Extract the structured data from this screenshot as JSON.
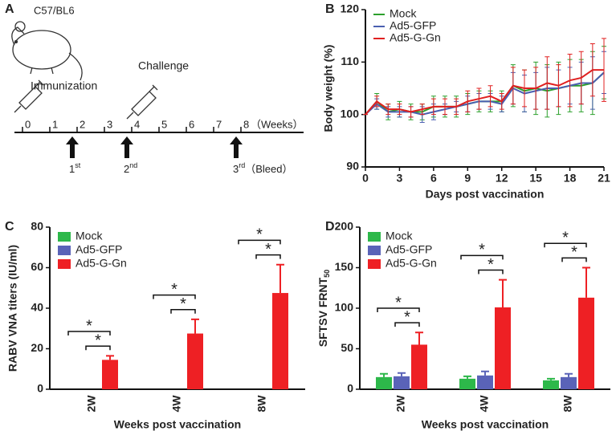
{
  "diagram": {
    "label": "A",
    "strain": "C57/BL6",
    "events": [
      "Immunization",
      "Challenge"
    ],
    "weeks": [
      "0",
      "1",
      "2",
      "3",
      "4",
      "5",
      "6",
      "7",
      "8"
    ],
    "unit": "（Weeks）",
    "doses": [
      {
        "text": "1",
        "sup": "st"
      },
      {
        "text": "2",
        "sup": "nd"
      },
      {
        "text": "3",
        "sup": "rd",
        "note": "（Bleed）"
      }
    ]
  },
  "chart_data": [
    {
      "label": "B",
      "type": "line",
      "xlabel": "Days post vaccination",
      "ylabel": "Body weight (%)",
      "x": [
        0,
        1,
        2,
        3,
        4,
        5,
        6,
        7,
        8,
        9,
        10,
        11,
        12,
        13,
        14,
        15,
        16,
        17,
        18,
        19,
        20,
        21
      ],
      "xlim": [
        0,
        21
      ],
      "xticks": [
        0,
        3,
        6,
        9,
        12,
        15,
        18,
        21
      ],
      "ylim": [
        90,
        120
      ],
      "yticks": [
        90,
        100,
        110,
        120
      ],
      "legend": "top-left",
      "series": [
        {
          "name": "Mock",
          "color": "#2ca02c",
          "values": [
            100,
            102.5,
            100.5,
            101,
            100.5,
            100.5,
            101.5,
            101.5,
            101.5,
            102,
            102.5,
            102.5,
            102.5,
            105.5,
            104.5,
            105,
            104.5,
            105,
            105.5,
            105.5,
            106,
            108
          ],
          "errors": [
            0,
            1.5,
            1.5,
            1.5,
            1.5,
            1.5,
            2,
            2,
            2,
            2,
            2,
            2,
            2,
            4,
            4,
            5,
            5,
            5,
            5,
            5,
            6,
            5
          ]
        },
        {
          "name": "Ad5-GFP",
          "color": "#4a5fb0",
          "values": [
            100,
            102,
            100.5,
            100.5,
            100.5,
            100,
            100.5,
            101,
            101.5,
            102,
            102.5,
            102.5,
            102,
            105,
            104,
            104.5,
            105,
            105,
            105.5,
            106,
            106,
            108
          ],
          "errors": [
            0,
            1,
            1,
            1,
            1,
            1.5,
            1.5,
            1,
            1,
            1.5,
            1.5,
            1.5,
            1.5,
            3,
            3.5,
            3.5,
            4,
            3.5,
            3.5,
            4,
            5,
            4
          ]
        },
        {
          "name": "Ad5-G-Gn",
          "color": "#e02020",
          "values": [
            100,
            102.5,
            101,
            101,
            100.5,
            101,
            101.5,
            101.5,
            101.5,
            102.5,
            103,
            103.5,
            102.5,
            105.5,
            105,
            105,
            106,
            105.5,
            106.5,
            107,
            108.5,
            108.5
          ],
          "errors": [
            0,
            1,
            1,
            1,
            1,
            1,
            1.5,
            1.5,
            1.5,
            2,
            2,
            2,
            1.5,
            3.5,
            3.5,
            4,
            5,
            4,
            5,
            5,
            5,
            6
          ]
        }
      ]
    },
    {
      "label": "C",
      "type": "bar",
      "xlabel": "Weeks post vaccination",
      "ylabel": "RABV VNA titers (IU/ml)",
      "categories": [
        "2W",
        "4W",
        "8W"
      ],
      "ylim": [
        0,
        80
      ],
      "yticks": [
        0,
        20,
        40,
        60,
        80
      ],
      "legend": "top-left",
      "series": [
        {
          "name": "Mock",
          "color": "#2db84a",
          "values": [
            0,
            0,
            0
          ],
          "errors": [
            0,
            0,
            0
          ]
        },
        {
          "name": "Ad5-GFP",
          "color": "#5a63b8",
          "values": [
            0,
            0,
            0
          ],
          "errors": [
            0,
            0,
            0
          ]
        },
        {
          "name": "Ad5-G-Gn",
          "color": "#ee2024",
          "values": [
            14.5,
            27.5,
            47.5
          ],
          "errors": [
            2,
            7,
            14
          ]
        }
      ],
      "significance": [
        {
          "text": "*",
          "category": 0,
          "series": [
            0,
            2
          ]
        },
        {
          "text": "*",
          "category": 0,
          "series": [
            1,
            2
          ]
        },
        {
          "text": "*",
          "category": 1,
          "series": [
            0,
            2
          ]
        },
        {
          "text": "*",
          "category": 1,
          "series": [
            1,
            2
          ]
        },
        {
          "text": "*",
          "category": 2,
          "series": [
            0,
            2
          ]
        },
        {
          "text": "*",
          "category": 2,
          "series": [
            1,
            2
          ]
        }
      ]
    },
    {
      "label": "D",
      "type": "bar",
      "xlabel": "Weeks post vaccination",
      "ylabel": {
        "text": "SFTSV FRNT",
        "sub": "50"
      },
      "categories": [
        "2W",
        "4W",
        "8W"
      ],
      "ylim": [
        0,
        200
      ],
      "yticks": [
        0,
        50,
        100,
        150,
        200
      ],
      "legend": "top-left",
      "series": [
        {
          "name": "Mock",
          "color": "#2db84a",
          "values": [
            15,
            13,
            11
          ],
          "errors": [
            4,
            3,
            2
          ]
        },
        {
          "name": "Ad5-GFP",
          "color": "#5a63b8",
          "values": [
            16,
            17,
            15
          ],
          "errors": [
            4,
            5,
            4
          ]
        },
        {
          "name": "Ad5-G-Gn",
          "color": "#ee2024",
          "values": [
            55,
            101,
            113
          ],
          "errors": [
            15,
            34,
            37
          ]
        }
      ],
      "significance": [
        {
          "text": "*",
          "category": 0,
          "series": [
            0,
            2
          ]
        },
        {
          "text": "*",
          "category": 0,
          "series": [
            1,
            2
          ]
        },
        {
          "text": "*",
          "category": 1,
          "series": [
            0,
            2
          ]
        },
        {
          "text": "*",
          "category": 1,
          "series": [
            1,
            2
          ]
        },
        {
          "text": "*",
          "category": 2,
          "series": [
            0,
            2
          ]
        },
        {
          "text": "*",
          "category": 2,
          "series": [
            1,
            2
          ]
        }
      ]
    }
  ]
}
